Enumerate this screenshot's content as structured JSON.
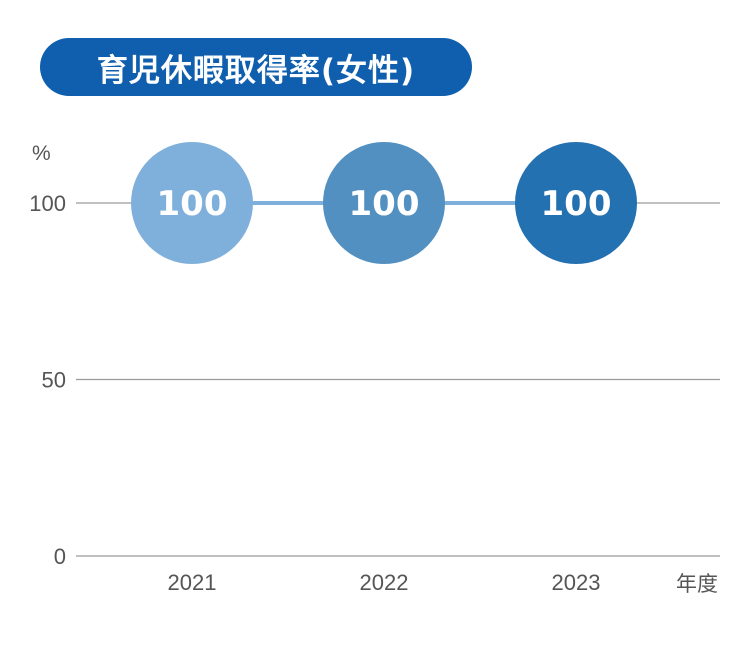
{
  "chart_data": {
    "type": "line",
    "title": "育児休暇取得率(女性)",
    "ylabel": "%",
    "xlabel": "年度",
    "categories": [
      "2021",
      "2022",
      "2023"
    ],
    "series": [
      {
        "values": [
          100,
          100,
          100
        ],
        "colors": [
          "#7fb0dc",
          "#5290c2",
          "#2371b1"
        ]
      }
    ],
    "data_labels": [
      "100",
      "100",
      "100"
    ],
    "yticks": [
      0,
      50,
      100
    ],
    "ytick_labels": [
      "0",
      "50",
      "100"
    ],
    "ylim": [
      0,
      100
    ],
    "grid": true,
    "legend": "none",
    "colors": {
      "title_background": "#0f5fae",
      "connector_line": "#7fb0dc",
      "grid_line": "#9a9a9a"
    }
  }
}
